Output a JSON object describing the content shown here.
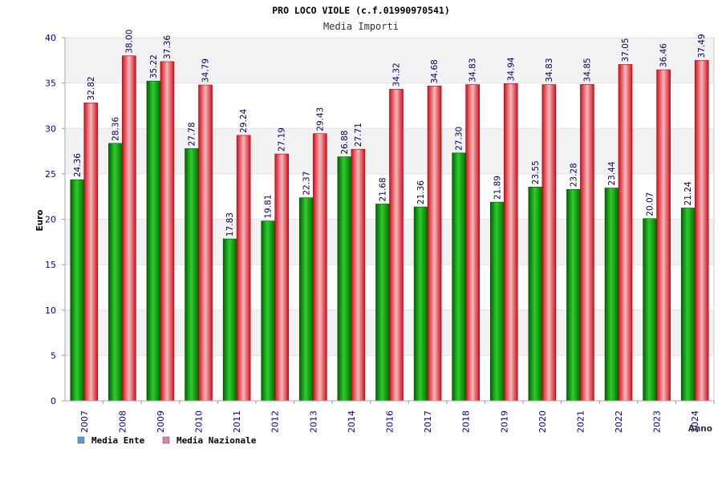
{
  "chart_data": {
    "type": "bar",
    "title": "PRO LOCO VIOLE (c.f.01990970541)",
    "subtitle": "Media Importi",
    "xlabel": "Anno",
    "ylabel": "Euro",
    "ylim": [
      0,
      40
    ],
    "yticks": [
      "0",
      "5",
      "10",
      "15",
      "20",
      "25",
      "30",
      "35",
      "40"
    ],
    "grid": true,
    "legend_position": "bottom-left",
    "categories": [
      "2007",
      "2008",
      "2009",
      "2010",
      "2011",
      "2012",
      "2013",
      "2014",
      "2016",
      "2017",
      "2018",
      "2019",
      "2020",
      "2021",
      "2022",
      "2023",
      "2024"
    ],
    "series": [
      {
        "name": "Media Ente",
        "values": [
          24.36,
          28.36,
          35.22,
          27.78,
          17.83,
          19.81,
          22.37,
          26.88,
          21.68,
          21.36,
          27.3,
          21.89,
          23.55,
          23.28,
          23.44,
          20.07,
          21.24
        ],
        "labels": [
          "24.36",
          "28.36",
          "35.22",
          "27.78",
          "17.83",
          "19.81",
          "22.37",
          "26.88",
          "21.68",
          "21.36",
          "27.30",
          "21.89",
          "23.55",
          "23.28",
          "23.44",
          "20.07",
          "21.24"
        ],
        "color": "#00a000",
        "legend_color": "#5b9bd5"
      },
      {
        "name": "Media Nazionale",
        "values": [
          32.82,
          38.0,
          37.36,
          34.79,
          29.24,
          27.19,
          29.43,
          27.71,
          34.32,
          34.68,
          34.83,
          34.94,
          34.83,
          34.85,
          37.05,
          36.46,
          37.49
        ],
        "labels": [
          "32.82",
          "38.00",
          "37.36",
          "34.79",
          "29.24",
          "27.19",
          "29.43",
          "27.71",
          "34.32",
          "34.68",
          "34.83",
          "34.94",
          "34.83",
          "34.85",
          "37.05",
          "36.46",
          "37.49"
        ],
        "color": "#e8202c",
        "legend_color": "#d97fb0"
      }
    ],
    "colors": {
      "plot_band": "#f2f2f2",
      "axis_text": "#0000aa",
      "label_text": "#000066"
    }
  }
}
